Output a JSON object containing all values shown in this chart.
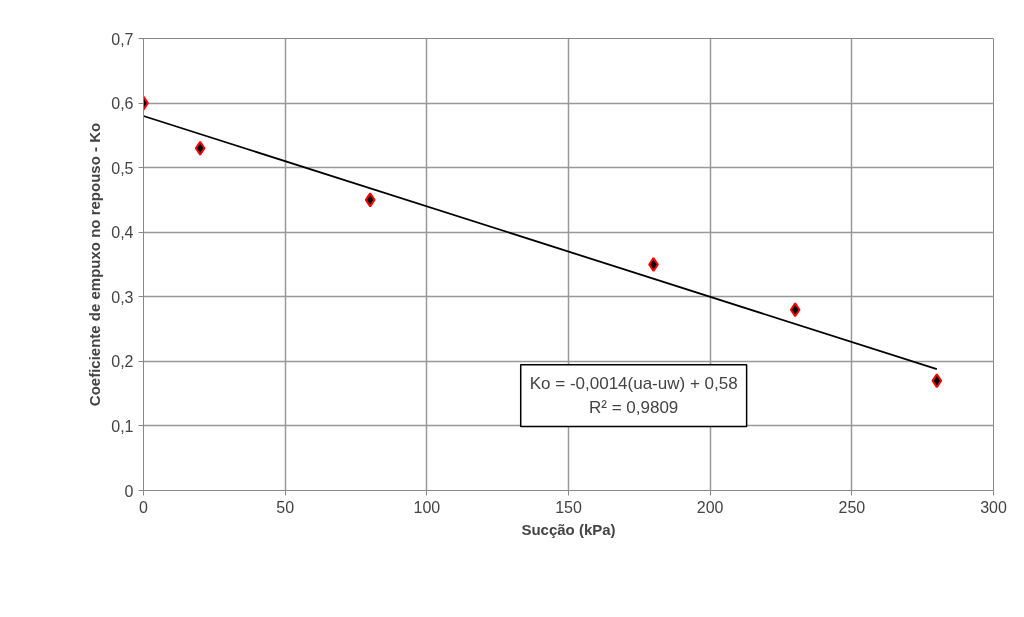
{
  "chart_data": {
    "type": "scatter",
    "xlabel": "Sucção (kPa)",
    "ylabel": "Coeficiente de empuxo no repouso - Ko",
    "series": [
      {
        "marker": "diamond",
        "color": "#ff0000",
        "x": [
          0,
          20,
          80,
          180,
          230,
          280
        ],
        "values": [
          0.6,
          0.53,
          0.45,
          0.35,
          0.28,
          0.17
        ]
      },
      {
        "type": "line",
        "color": "#000000",
        "x": [
          0,
          280
        ],
        "values": [
          0.58,
          0.188
        ]
      }
    ],
    "xlim": [
      0,
      300
    ],
    "xticks": [
      0,
      50,
      100,
      150,
      200,
      250,
      300
    ],
    "ylim": [
      0,
      0.7
    ],
    "yticks": [
      {
        "value": 0,
        "label": "0"
      },
      {
        "value": 0.1,
        "label": "0,1"
      },
      {
        "value": 0.2,
        "label": "0,2"
      },
      {
        "value": 0.3,
        "label": "0,3"
      },
      {
        "value": 0.4,
        "label": "0,4"
      },
      {
        "value": 0.5,
        "label": "0,5"
      },
      {
        "value": 0.6,
        "label": "0,6"
      },
      {
        "value": 0.7,
        "label": "0,7"
      }
    ],
    "grid": true,
    "line_style": "solid",
    "annotations": [
      "Ko = -0,0014(ua-uw) + 0,58\nR² = 0,9809"
    ]
  }
}
